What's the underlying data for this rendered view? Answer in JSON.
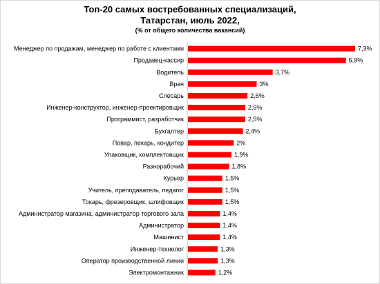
{
  "chart_data": {
    "type": "bar",
    "orientation": "horizontal",
    "title_lines": [
      "Топ-20 самых востребованных специализаций,",
      "Татарстан,  июль 2022,"
    ],
    "subtitle": "(% от общего количества вакансий)",
    "bar_color": "#ff0000",
    "categories": [
      "Менеджер по продажам, менеджер по работе с клиентами",
      "Продавец-кассир",
      "Водитель",
      "Врач",
      "Слесарь",
      "Инженер-конструктор, инженер-проектировщик",
      "Программист, разработчик",
      "Бухгалтер",
      "Повар, пекарь, кондитер",
      "Упаковщик, комплектовщик",
      "Разнорабочий",
      "Курьер",
      "Учитель, преподаватель, педагог",
      "Токарь, фрезеровщик, шлифовщик",
      "Администратор магазина, администратор торгового зала",
      "Администратор",
      "Машинист",
      "Инженер-технолог",
      "Оператор производственной линии",
      "Электромонтажник"
    ],
    "values": [
      7.3,
      6.9,
      3.7,
      3,
      2.6,
      2.5,
      2.5,
      2.4,
      2,
      1.9,
      1.8,
      1.5,
      1.5,
      1.5,
      1.4,
      1.4,
      1.4,
      1.3,
      1.3,
      1.2
    ],
    "value_labels": [
      "7,3%",
      "6,9%",
      "3,7%",
      "3%",
      "2,6%",
      "2,5%",
      "2,5%",
      "2,4%",
      "2%",
      "1,9%",
      "1,8%",
      "1,5%",
      "1,5%",
      "1,5%",
      "1,4%",
      "1,4%",
      "1,4%",
      "1,3%",
      "1,3%",
      "1,2%"
    ],
    "xlim": [
      0,
      7.3
    ],
    "grid": false,
    "legend": false
  }
}
